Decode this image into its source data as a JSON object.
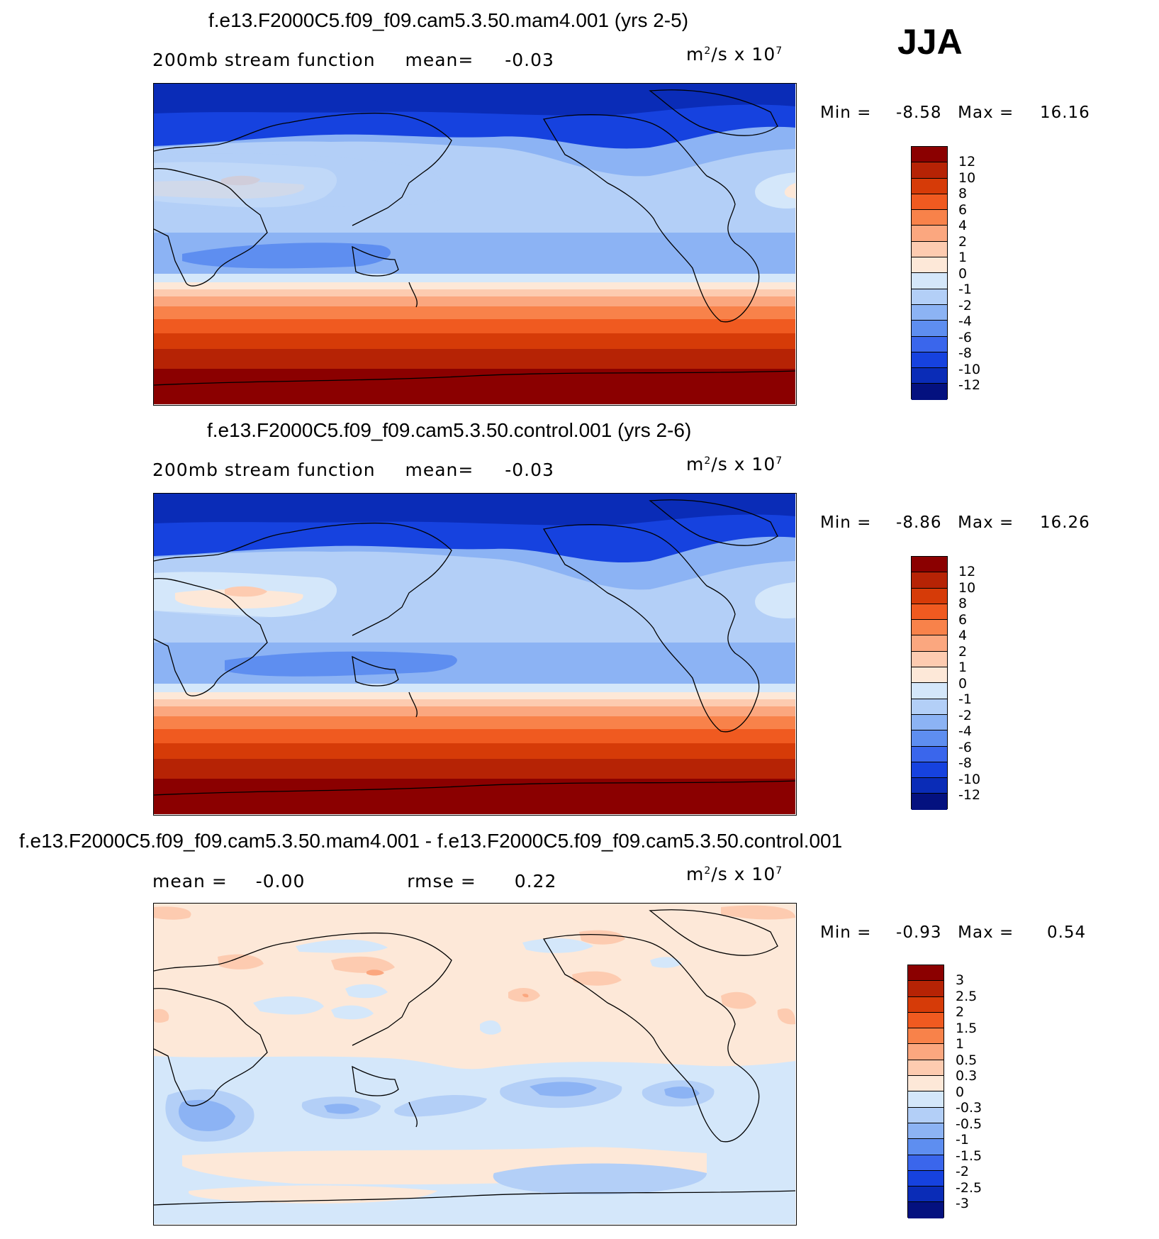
{
  "season": "JJA",
  "units_prefix": "m",
  "units_mid": "/s x 10",
  "units_sup2": "2",
  "units_sup7": "7",
  "panels": [
    {
      "title": "f.e13.F2000C5.f09_f09.cam5.3.50.mam4.001 (yrs 2-5)",
      "subtitle": "200mb stream function",
      "mean_label": "mean=",
      "mean_value": "-0.03",
      "min_label": "Min =",
      "min_value": "-8.58",
      "max_label": "Max =",
      "max_value": "16.16",
      "levels": [
        "12",
        "10",
        "8",
        "6",
        "4",
        "2",
        "1",
        "0",
        "-1",
        "-2",
        "-4",
        "-6",
        "-8",
        "-10",
        "-12"
      ]
    },
    {
      "title": "f.e13.F2000C5.f09_f09.cam5.3.50.control.001 (yrs 2-6)",
      "subtitle": "200mb stream function",
      "mean_label": "mean=",
      "mean_value": "-0.03",
      "min_label": "Min =",
      "min_value": "-8.86",
      "max_label": "Max =",
      "max_value": "16.26",
      "levels": [
        "12",
        "10",
        "8",
        "6",
        "4",
        "2",
        "1",
        "0",
        "-1",
        "-2",
        "-4",
        "-6",
        "-8",
        "-10",
        "-12"
      ]
    },
    {
      "title": "f.e13.F2000C5.f09_f09.cam5.3.50.mam4.001 - f.e13.F2000C5.f09_f09.cam5.3.50.control.001",
      "mean_label": "mean =",
      "mean_value": "-0.00",
      "rmse_label": "rmse =",
      "rmse_value": "0.22",
      "min_label": "Min =",
      "min_value": "-0.93",
      "max_label": "Max =",
      "max_value": "0.54",
      "levels": [
        "3",
        "2.5",
        "2",
        "1.5",
        "1",
        "0.5",
        "0.3",
        "0",
        "-0.3",
        "-0.5",
        "-1",
        "-1.5",
        "-2",
        "-2.5",
        "-3"
      ]
    }
  ],
  "colors": {
    "palette": [
      "#8b0000",
      "#b62305",
      "#d63b08",
      "#f05a20",
      "#f8824a",
      "#fba77f",
      "#fdcbb0",
      "#fde8d8",
      "#d4e7fa",
      "#b3cff7",
      "#8cb3f4",
      "#5e8ef0",
      "#3a66ec",
      "#1642df",
      "#0a2cb7",
      "#04117f"
    ],
    "map_bg": "#8cb3f4",
    "line": "#000000"
  }
}
